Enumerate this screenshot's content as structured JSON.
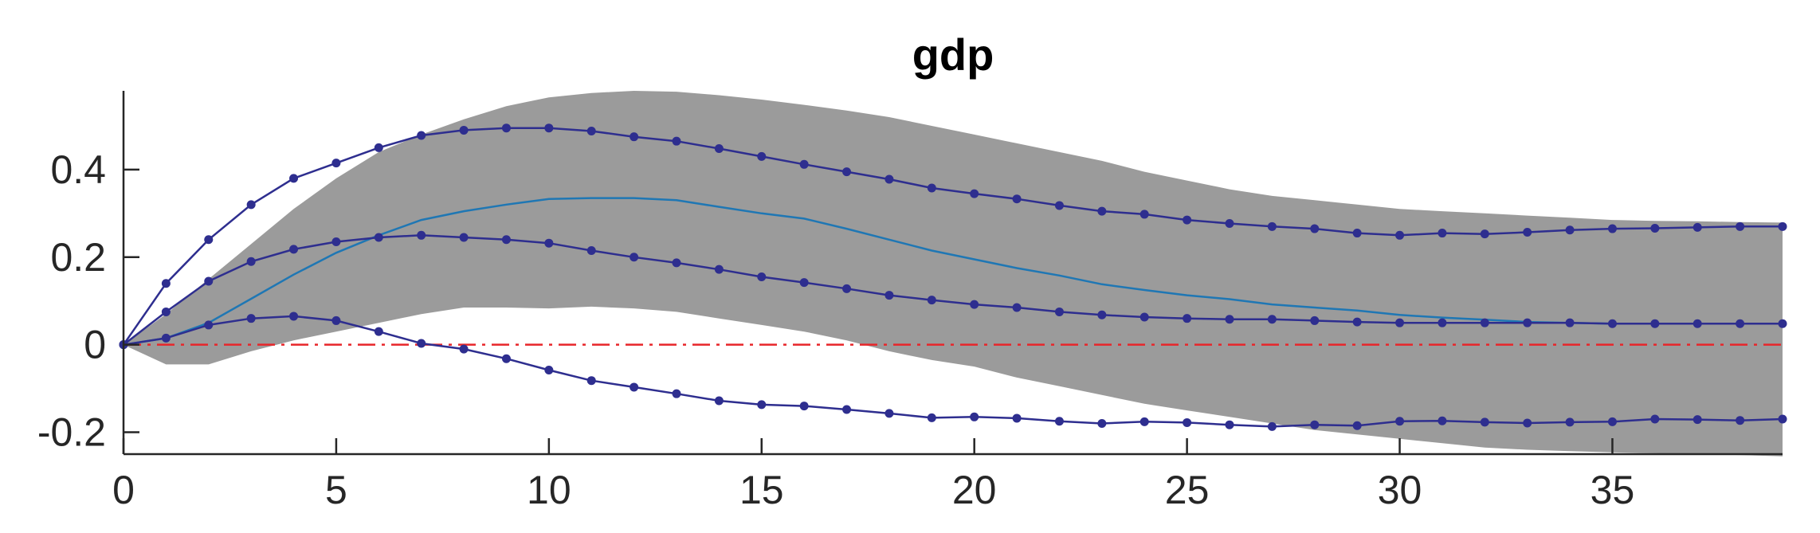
{
  "chart_data": {
    "type": "line",
    "title": "gdp",
    "xlabel": "",
    "ylabel": "",
    "xlim": [
      0,
      39
    ],
    "ylim": [
      -0.25,
      0.58
    ],
    "xticks": [
      0,
      5,
      10,
      15,
      20,
      25,
      30,
      35
    ],
    "yticks": [
      -0.2,
      0,
      0.2,
      0.4
    ],
    "xtick_labels": [
      "0",
      "5",
      "10",
      "15",
      "20",
      "25",
      "30",
      "35"
    ],
    "ytick_labels": [
      "-0.2",
      "0",
      "0.2",
      "0.4"
    ],
    "grid": false,
    "legend": "none",
    "x": [
      0,
      1,
      2,
      3,
      4,
      5,
      6,
      7,
      8,
      9,
      10,
      11,
      12,
      13,
      14,
      15,
      16,
      17,
      18,
      19,
      20,
      21,
      22,
      23,
      24,
      25,
      26,
      27,
      28,
      29,
      30,
      31,
      32,
      33,
      34,
      35,
      36,
      37,
      38,
      39
    ],
    "band": {
      "upper": [
        0,
        0.07,
        0.15,
        0.23,
        0.31,
        0.38,
        0.44,
        0.48,
        0.515,
        0.545,
        0.565,
        0.575,
        0.58,
        0.578,
        0.57,
        0.56,
        0.548,
        0.535,
        0.52,
        0.5,
        0.48,
        0.46,
        0.44,
        0.42,
        0.395,
        0.375,
        0.355,
        0.34,
        0.33,
        0.32,
        0.31,
        0.305,
        0.3,
        0.295,
        0.29,
        0.285,
        0.283,
        0.282,
        0.28,
        0.279
      ],
      "lower": [
        0,
        -0.045,
        -0.045,
        -0.015,
        0.01,
        0.03,
        0.05,
        0.07,
        0.085,
        0.085,
        0.083,
        0.087,
        0.083,
        0.075,
        0.06,
        0.045,
        0.03,
        0.01,
        -0.015,
        -0.035,
        -0.05,
        -0.075,
        -0.095,
        -0.115,
        -0.135,
        -0.15,
        -0.165,
        -0.18,
        -0.195,
        -0.205,
        -0.215,
        -0.225,
        -0.235,
        -0.24,
        -0.243,
        -0.246,
        -0.248,
        -0.25,
        -0.252,
        -0.255
      ],
      "color": "#9b9b9b"
    },
    "series": [
      {
        "role": "median",
        "color": "#1f77b4",
        "markers": false,
        "values": [
          0,
          0.015,
          0.05,
          0.105,
          0.16,
          0.21,
          0.25,
          0.285,
          0.305,
          0.32,
          0.333,
          0.335,
          0.335,
          0.33,
          0.315,
          0.3,
          0.288,
          0.265,
          0.24,
          0.215,
          0.195,
          0.175,
          0.158,
          0.138,
          0.125,
          0.113,
          0.104,
          0.092,
          0.085,
          0.078,
          0.068,
          0.062,
          0.057,
          0.052,
          0.05,
          0.048,
          0.048,
          0.048,
          0.048,
          0.048
        ]
      },
      {
        "role": "upper",
        "color": "#2e2e8f",
        "markers": true,
        "values": [
          0,
          0.14,
          0.24,
          0.32,
          0.38,
          0.415,
          0.45,
          0.478,
          0.49,
          0.495,
          0.495,
          0.488,
          0.475,
          0.465,
          0.448,
          0.43,
          0.412,
          0.395,
          0.378,
          0.358,
          0.345,
          0.333,
          0.318,
          0.305,
          0.298,
          0.285,
          0.277,
          0.27,
          0.265,
          0.255,
          0.25,
          0.255,
          0.253,
          0.257,
          0.262,
          0.265,
          0.266,
          0.268,
          0.27,
          0.27
        ]
      },
      {
        "role": "mid",
        "color": "#2e2e8f",
        "markers": true,
        "values": [
          0,
          0.075,
          0.145,
          0.19,
          0.218,
          0.235,
          0.245,
          0.25,
          0.245,
          0.24,
          0.232,
          0.215,
          0.2,
          0.187,
          0.172,
          0.155,
          0.142,
          0.128,
          0.113,
          0.102,
          0.092,
          0.085,
          0.075,
          0.068,
          0.063,
          0.06,
          0.058,
          0.058,
          0.055,
          0.052,
          0.05,
          0.05,
          0.05,
          0.05,
          0.05,
          0.048,
          0.048,
          0.048,
          0.048,
          0.048
        ]
      },
      {
        "role": "lower",
        "color": "#2e2e8f",
        "markers": true,
        "values": [
          0,
          0.015,
          0.045,
          0.06,
          0.065,
          0.055,
          0.03,
          0.003,
          -0.01,
          -0.032,
          -0.058,
          -0.082,
          -0.097,
          -0.112,
          -0.128,
          -0.137,
          -0.14,
          -0.148,
          -0.157,
          -0.167,
          -0.165,
          -0.168,
          -0.175,
          -0.18,
          -0.176,
          -0.178,
          -0.183,
          -0.187,
          -0.183,
          -0.185,
          -0.175,
          -0.174,
          -0.177,
          -0.179,
          -0.177,
          -0.176,
          -0.17,
          -0.171,
          -0.173,
          -0.17
        ]
      }
    ],
    "zero_line": {
      "y": 0,
      "color": "#e8262a",
      "style": "dash-dot"
    }
  }
}
